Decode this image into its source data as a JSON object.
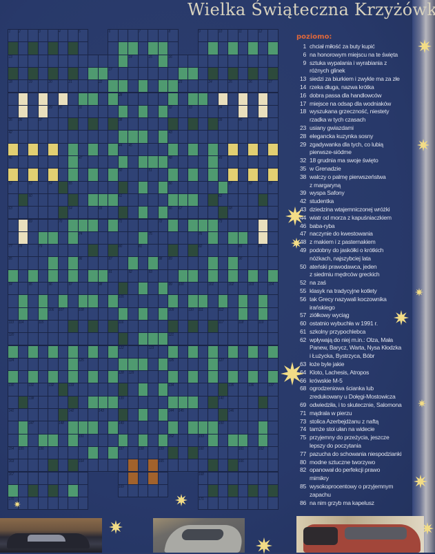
{
  "title": "Wielka Świąteczna Krzyżówka",
  "colors": {
    "background": "#28396a",
    "cell_blue": "#2f4275",
    "cell_green": "#4f9a70",
    "cell_dark_green": "#2d4a3c",
    "cell_yellow": "#e2cf72",
    "cell_cream": "#e9dfbd",
    "cell_orange": "#a2622c",
    "heading": "#e0683a",
    "star": "#f2dc86"
  },
  "crossword": {
    "cell_numbers": [
      1,
      2,
      3,
      4,
      5,
      6,
      7,
      8,
      9,
      10,
      11,
      12,
      13,
      14,
      15,
      16,
      17,
      18,
      19,
      20,
      21,
      22,
      23,
      24,
      25,
      26,
      27,
      28,
      29,
      30,
      31,
      32,
      33,
      34,
      35,
      36,
      37,
      38,
      39,
      40,
      41,
      42,
      43,
      44,
      45,
      46,
      47,
      48,
      49,
      50,
      51,
      52,
      53,
      54,
      55,
      56,
      57,
      58,
      59,
      60,
      61,
      62,
      63,
      64,
      65,
      66,
      67,
      68,
      69,
      70,
      71,
      72,
      73,
      74,
      75,
      76,
      77,
      78,
      79,
      80,
      81,
      82,
      83,
      84,
      85,
      86,
      87,
      88,
      89,
      90,
      91,
      92,
      93,
      94,
      95,
      96,
      97,
      98,
      99,
      100,
      101,
      102,
      103,
      104,
      105,
      106,
      107,
      108,
      109,
      110,
      111,
      112,
      113,
      114,
      115,
      116,
      117,
      118,
      119,
      120,
      121,
      122,
      123,
      124,
      125,
      126,
      127,
      128,
      129,
      130,
      131,
      132,
      133,
      134,
      135,
      136,
      137,
      138,
      139,
      140,
      141,
      142,
      143,
      144,
      145,
      146,
      147,
      148,
      149,
      150,
      151,
      152,
      153,
      154,
      155,
      156,
      157,
      158,
      159,
      160,
      161,
      162,
      163,
      164,
      165,
      166,
      167,
      168,
      169,
      170,
      171
    ]
  },
  "clues": {
    "heading": "poziomo:",
    "items": [
      {
        "n": "1",
        "lines": [
          "chciał miłość za buty kupić"
        ]
      },
      {
        "n": "6",
        "lines": [
          "na honorowym miejscu na te święta"
        ]
      },
      {
        "n": "9",
        "lines": [
          "sztuka wypalania i wyrabiania z",
          "różnych glinek"
        ]
      },
      {
        "n": "13",
        "lines": [
          "siedzi za biurkiem i zwykle ma za złe"
        ]
      },
      {
        "n": "14",
        "lines": [
          "rzeka długa, nazwa krótka"
        ]
      },
      {
        "n": "16",
        "lines": [
          "dobra passa dla handlowców"
        ]
      },
      {
        "n": "17",
        "lines": [
          "miejsce na odsap dla wodniaków"
        ]
      },
      {
        "n": "18",
        "lines": [
          "wyszukana grzeczność, niestety",
          "rzadka w tych czasach"
        ]
      },
      {
        "n": "23",
        "lines": [
          "usiany gwiazdami"
        ]
      },
      {
        "n": "28",
        "lines": [
          "elegancka kuzynka sosny"
        ]
      },
      {
        "n": "29",
        "lines": [
          "zgadywanka dla tych, co lubią",
          "pierwsze-siódme"
        ]
      },
      {
        "n": "32",
        "lines": [
          "18 grudnia ma swoje święto"
        ]
      },
      {
        "n": "35",
        "lines": [
          "w Grenadzie"
        ]
      },
      {
        "n": "38",
        "lines": [
          "walczy o palmę pierwszeństwa",
          "z margaryną"
        ]
      },
      {
        "n": "39",
        "lines": [
          "wyspa Safony"
        ]
      },
      {
        "n": "42",
        "lines": [
          "studentka"
        ]
      },
      {
        "n": "43",
        "lines": [
          "dziedzina wtajemniczonej wróżki"
        ]
      },
      {
        "n": "44",
        "lines": [
          "wiatr od morza z kapuśniaczkiem"
        ]
      },
      {
        "n": "46",
        "lines": [
          "baba-ryba"
        ]
      },
      {
        "n": "47",
        "lines": [
          "naczynie do kwestowania"
        ]
      },
      {
        "n": "48",
        "lines": [
          "z makiem i z pasternakiem"
        ]
      },
      {
        "n": "49",
        "lines": [
          "podobny do jaskółki o krótkich",
          "nóżkach, najszybciej lata"
        ]
      },
      {
        "n": "50",
        "lines": [
          "ateński prawodawca, jeden",
          "z siedmiu mędrców greckich"
        ]
      },
      {
        "n": "52",
        "lines": [
          "na zaś"
        ]
      },
      {
        "n": "55",
        "lines": [
          "klasyk na tradycyjne kotlety"
        ]
      },
      {
        "n": "56",
        "lines": [
          "tak Grecy nazywali koczownika",
          "irańskiego"
        ]
      },
      {
        "n": "57",
        "lines": [
          "ziółkowy wyciąg"
        ]
      },
      {
        "n": "60",
        "lines": [
          "ostatnio wybuchła w 1991 r."
        ]
      },
      {
        "n": "61",
        "lines": [
          "szkolny przypochlebca"
        ]
      },
      {
        "n": "62",
        "lines": [
          "wpływają do niej m.in.: Olza, Mała",
          "Panew, Barycz, Warta, Nysa Kłodzka",
          "i Łużycka, Bystrzyca, Bóbr"
        ]
      },
      {
        "n": "63",
        "lines": [
          "łoże byle jakie"
        ]
      },
      {
        "n": "64",
        "lines": [
          "Kloto, Lachesis, Atropos"
        ]
      },
      {
        "n": "66",
        "lines": [
          "krówskie M-5"
        ]
      },
      {
        "n": "68",
        "lines": [
          "ogrodzeniowa ścianka lub",
          "zredukowany u Dołęgi-Mostowicza"
        ]
      },
      {
        "n": "69",
        "lines": [
          "odwiedziła, i to skutecznie, Salomona"
        ]
      },
      {
        "n": "71",
        "lines": [
          "mądrala w pierzu"
        ]
      },
      {
        "n": "73",
        "lines": [
          "stolica Azerbejdżanu z naftą"
        ]
      },
      {
        "n": "74",
        "lines": [
          "tamże stoi ułan na widecie"
        ]
      },
      {
        "n": "75",
        "lines": [
          "przyjemny do przeżycia, jeszcze",
          "lepszy do poczytania"
        ]
      },
      {
        "n": "77",
        "lines": [
          "pazucha do schowania niespodzianki"
        ]
      },
      {
        "n": "80",
        "lines": [
          "modne sztuczne tworzywo"
        ]
      },
      {
        "n": "82",
        "lines": [
          "opanował do perfekcji prawo",
          "mimikry"
        ]
      },
      {
        "n": "85",
        "lines": [
          "wysokoprocentowy o przyjemnym",
          "zapachu"
        ]
      },
      {
        "n": "86",
        "lines": [
          "na nim grzyb ma kapelusz"
        ]
      }
    ]
  },
  "decorations": {
    "star_icon": "eight-point-star",
    "photos": [
      "dark-car-photo",
      "silver-car-photo",
      "red-car-photo"
    ]
  }
}
